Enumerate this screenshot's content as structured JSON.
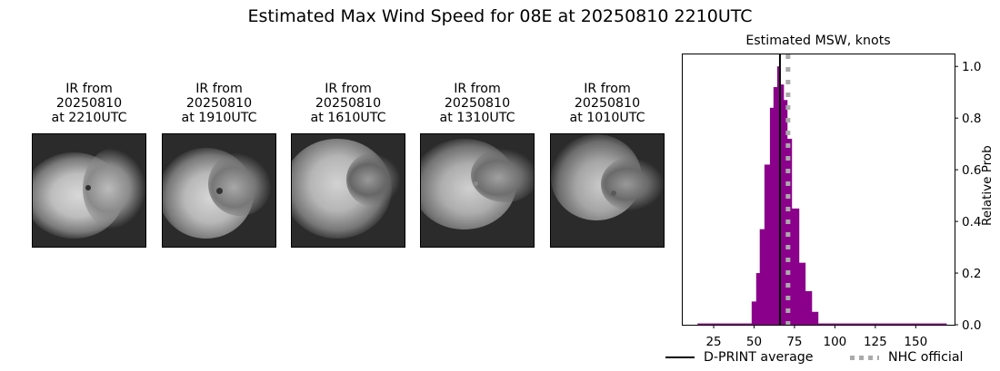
{
  "figure": {
    "title": "Estimated Max Wind Speed for 08E at 20250810 2210UTC"
  },
  "thumbnails": [
    {
      "title_line1": "IR from",
      "title_line2": "20250810",
      "title_line3": "at 2210UTC",
      "icon": "satellite-ir-image"
    },
    {
      "title_line1": "IR from",
      "title_line2": "20250810",
      "title_line3": "at 1910UTC",
      "icon": "satellite-ir-image"
    },
    {
      "title_line1": "IR from",
      "title_line2": "20250810",
      "title_line3": "at 1610UTC",
      "icon": "satellite-ir-image"
    },
    {
      "title_line1": "IR from",
      "title_line2": "20250810",
      "title_line3": "at 1310UTC",
      "icon": "satellite-ir-image"
    },
    {
      "title_line1": "IR from",
      "title_line2": "20250810",
      "title_line3": "at 1010UTC",
      "icon": "satellite-ir-image"
    }
  ],
  "colors": {
    "bar": "#8b008b",
    "dprint_line": "#000000",
    "nhc_line": "#aaaaaa"
  },
  "chart_data": {
    "type": "bar",
    "title": "Estimated MSW, knots",
    "xlabel": "",
    "ylabel": "Relative Prob",
    "xlim": [
      5.3,
      174
    ],
    "ylim": [
      0,
      1.05
    ],
    "xticks": [
      25,
      50,
      75,
      100,
      125,
      150
    ],
    "yticks": [
      0.0,
      0.2,
      0.4,
      0.6,
      0.8,
      1.0
    ],
    "ytick_labels": [
      "0.0",
      "0.2",
      "0.4",
      "0.6",
      "0.8",
      "1.0"
    ],
    "y_axis_side": "right",
    "grid": false,
    "bins": [
      {
        "x0": 15.0,
        "x1": 48.5,
        "value": 0.005
      },
      {
        "x0": 48.5,
        "x1": 51.3,
        "value": 0.09
      },
      {
        "x0": 51.3,
        "x1": 53.5,
        "value": 0.2
      },
      {
        "x0": 53.5,
        "x1": 56.4,
        "value": 0.37
      },
      {
        "x0": 56.4,
        "x1": 59.8,
        "value": 0.62
      },
      {
        "x0": 59.8,
        "x1": 62.0,
        "value": 0.84
      },
      {
        "x0": 62.0,
        "x1": 64.3,
        "value": 0.92
      },
      {
        "x0": 64.3,
        "x1": 66.0,
        "value": 1.0
      },
      {
        "x0": 66.0,
        "x1": 68.3,
        "value": 0.93
      },
      {
        "x0": 68.3,
        "x1": 70.5,
        "value": 0.87
      },
      {
        "x0": 70.5,
        "x1": 73.3,
        "value": 0.72
      },
      {
        "x0": 73.3,
        "x1": 77.8,
        "value": 0.45
      },
      {
        "x0": 77.8,
        "x1": 81.7,
        "value": 0.24
      },
      {
        "x0": 81.7,
        "x1": 85.7,
        "value": 0.13
      },
      {
        "x0": 85.7,
        "x1": 89.6,
        "value": 0.05
      },
      {
        "x0": 89.6,
        "x1": 169.0,
        "value": 0.005
      }
    ],
    "vlines": [
      {
        "name": "D-PRINT average",
        "x": 66,
        "style": "solid",
        "color": "#000000"
      },
      {
        "name": "NHC official",
        "x": 71,
        "style": "dotted",
        "color": "#aaaaaa"
      }
    ],
    "legend": {
      "position": "below",
      "entries": [
        "D-PRINT average",
        "NHC official"
      ]
    }
  }
}
